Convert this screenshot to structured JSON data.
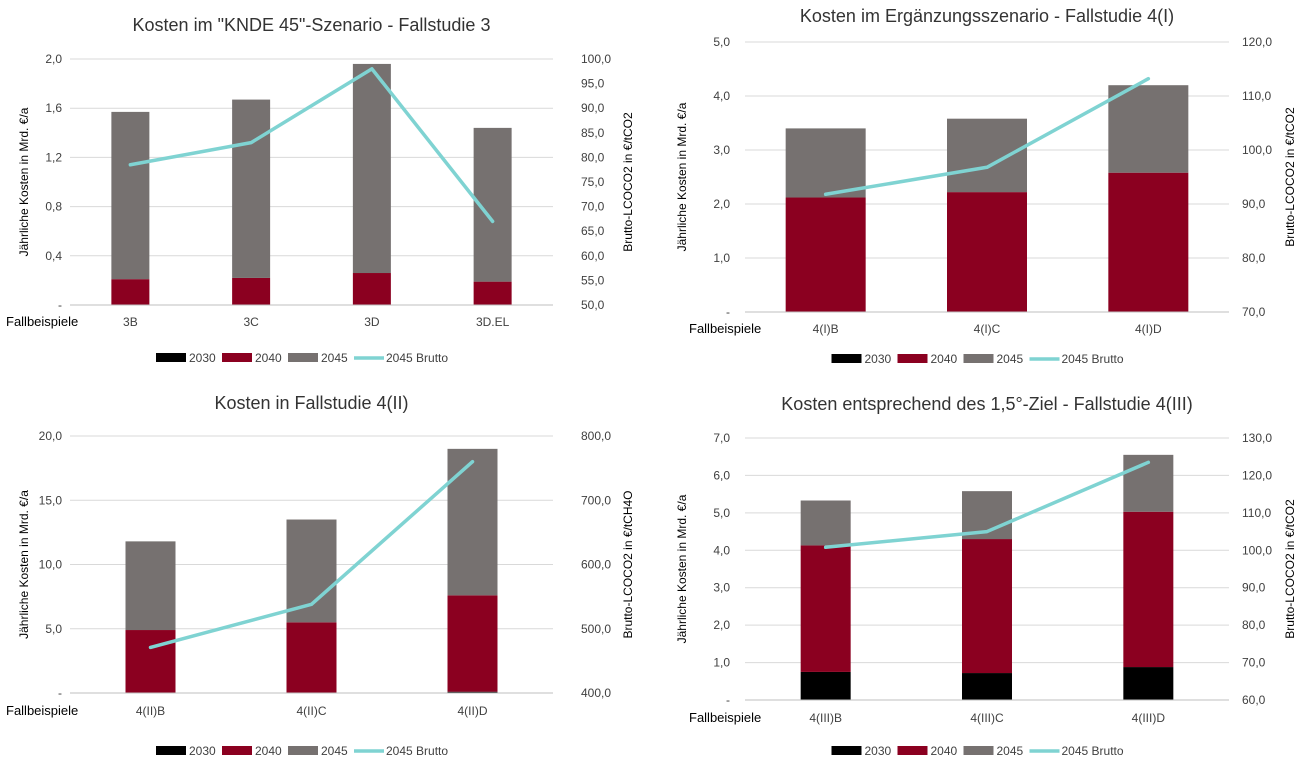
{
  "chart_data": [
    {
      "type": "bar",
      "title": "Kosten im \"KNDE 45\"-Szenario - Fallstudie 3",
      "xlabel": "Fallbeispiele",
      "ylabel": "Jährliche Kosten in Mrd. €/a",
      "y2label": "Brutto-LCOCO2 in €/tCO2",
      "categories": [
        "3B",
        "3C",
        "3D",
        "3D.EL"
      ],
      "ylim": [
        0,
        2.0
      ],
      "y_ticks": [
        0,
        0.4,
        0.8,
        1.2,
        1.6,
        2.0
      ],
      "y_tick_labels": [
        "-",
        "0,4",
        "0,8",
        "1,2",
        "1,6",
        "2,0"
      ],
      "y2lim": [
        50,
        100
      ],
      "y2_ticks": [
        50,
        55,
        60,
        65,
        70,
        75,
        80,
        85,
        90,
        95,
        100
      ],
      "y2_tick_labels": [
        "50,0",
        "55,0",
        "60,0",
        "65,0",
        "70,0",
        "75,0",
        "80,0",
        "85,0",
        "90,0",
        "95,0",
        "100,0"
      ],
      "series": [
        {
          "name": "2030",
          "type": "stacked-bar",
          "color": "#000000",
          "values": [
            0,
            0,
            0,
            0
          ]
        },
        {
          "name": "2040",
          "type": "stacked-bar",
          "color": "#8b0020",
          "values": [
            0.21,
            0.22,
            0.26,
            0.19
          ]
        },
        {
          "name": "2045",
          "type": "stacked-bar",
          "color": "#767170",
          "values": [
            1.36,
            1.45,
            1.7,
            1.25
          ]
        },
        {
          "name": "2045 Brutto",
          "type": "line",
          "axis": "secondary",
          "color": "#7fd3d2",
          "values": [
            78.5,
            83.0,
            98.0,
            67.0
          ]
        }
      ],
      "grid": true,
      "legend": "bottom"
    },
    {
      "type": "bar",
      "title": "Kosten im Ergänzungsszenario - Fallstudie 4(I)",
      "xlabel": "Fallbeispiele",
      "ylabel": "Jährliche Kosten in Mrd. €/a",
      "y2label": "Brutto-LCOCO2 in €/tCO2",
      "categories": [
        "4(I)B",
        "4(I)C",
        "4(I)D"
      ],
      "ylim": [
        0,
        5.0
      ],
      "y_ticks": [
        0,
        1,
        2,
        3,
        4,
        5
      ],
      "y_tick_labels": [
        "-",
        "1,0",
        "2,0",
        "3,0",
        "4,0",
        "5,0"
      ],
      "y2lim": [
        70,
        120
      ],
      "y2_ticks": [
        70,
        80,
        90,
        100,
        110,
        120
      ],
      "y2_tick_labels": [
        "70,0",
        "80,0",
        "90,0",
        "100,0",
        "110,0",
        "120,0"
      ],
      "series": [
        {
          "name": "2030",
          "type": "stacked-bar",
          "color": "#000000",
          "values": [
            0,
            0,
            0
          ]
        },
        {
          "name": "2040",
          "type": "stacked-bar",
          "color": "#8b0020",
          "values": [
            2.12,
            2.22,
            2.58
          ]
        },
        {
          "name": "2045",
          "type": "stacked-bar",
          "color": "#767170",
          "values": [
            1.28,
            1.36,
            1.62
          ]
        },
        {
          "name": "2045 Brutto",
          "type": "line",
          "axis": "secondary",
          "color": "#7fd3d2",
          "values": [
            91.8,
            96.8,
            113.2
          ]
        }
      ],
      "grid": true,
      "legend": "bottom"
    },
    {
      "type": "bar",
      "title": "Kosten in Fallstudie 4(II)",
      "xlabel": "Fallbeispiele",
      "ylabel": "Jährliche Kosten in Mrd. €/a",
      "y2label": "Brutto-LCOCO2 in €/tCH4O",
      "categories": [
        "4(II)B",
        "4(II)C",
        "4(II)D"
      ],
      "ylim": [
        0,
        20.0
      ],
      "y_ticks": [
        0,
        5,
        10,
        15,
        20
      ],
      "y_tick_labels": [
        "-",
        "5,0",
        "10,0",
        "15,0",
        "20,0"
      ],
      "y2lim": [
        400,
        800
      ],
      "y2_ticks": [
        400,
        500,
        600,
        700,
        800
      ],
      "y2_tick_labels": [
        "400,0",
        "500,0",
        "600,0",
        "700,0",
        "800,0"
      ],
      "series": [
        {
          "name": "2030",
          "type": "stacked-bar",
          "color": "#000000",
          "values": [
            0,
            0,
            0.1
          ]
        },
        {
          "name": "2040",
          "type": "stacked-bar",
          "color": "#8b0020",
          "values": [
            4.9,
            5.5,
            7.5
          ]
        },
        {
          "name": "2045",
          "type": "stacked-bar",
          "color": "#767170",
          "values": [
            6.9,
            8.0,
            11.4
          ]
        },
        {
          "name": "2045 Brutto",
          "type": "line",
          "axis": "secondary",
          "color": "#7fd3d2",
          "values": [
            471,
            538,
            760
          ]
        }
      ],
      "grid": true,
      "legend": "bottom"
    },
    {
      "type": "bar",
      "title": "Kosten  entsprechend des 1,5°-Ziel - Fallstudie 4(III)",
      "xlabel": "Fallbeispiele",
      "ylabel": "Jährliche Kosten in Mrd. €/a",
      "y2label": "Brutto-LCOCO2 in €/tCO2",
      "categories": [
        "4(III)B",
        "4(III)C",
        "4(III)D"
      ],
      "ylim": [
        0,
        7.0
      ],
      "y_ticks": [
        0,
        1,
        2,
        3,
        4,
        5,
        6,
        7
      ],
      "y_tick_labels": [
        "-",
        "1,0",
        "2,0",
        "3,0",
        "4,0",
        "5,0",
        "6,0",
        "7,0"
      ],
      "y2lim": [
        60,
        130
      ],
      "y2_ticks": [
        60,
        70,
        80,
        90,
        100,
        110,
        120,
        130
      ],
      "y2_tick_labels": [
        "60,0",
        "70,0",
        "80,0",
        "90,0",
        "100,0",
        "110,0",
        "120,0",
        "130,0"
      ],
      "series": [
        {
          "name": "2030",
          "type": "stacked-bar",
          "color": "#000000",
          "values": [
            0.75,
            0.72,
            0.88
          ]
        },
        {
          "name": "2040",
          "type": "stacked-bar",
          "color": "#8b0020",
          "values": [
            3.38,
            3.58,
            4.15
          ]
        },
        {
          "name": "2045",
          "type": "stacked-bar",
          "color": "#767170",
          "values": [
            1.2,
            1.28,
            1.52
          ]
        },
        {
          "name": "2045 Brutto",
          "type": "line",
          "axis": "secondary",
          "color": "#7fd3d2",
          "values": [
            100.8,
            105.0,
            123.5
          ]
        }
      ],
      "grid": true,
      "legend": "bottom"
    }
  ]
}
